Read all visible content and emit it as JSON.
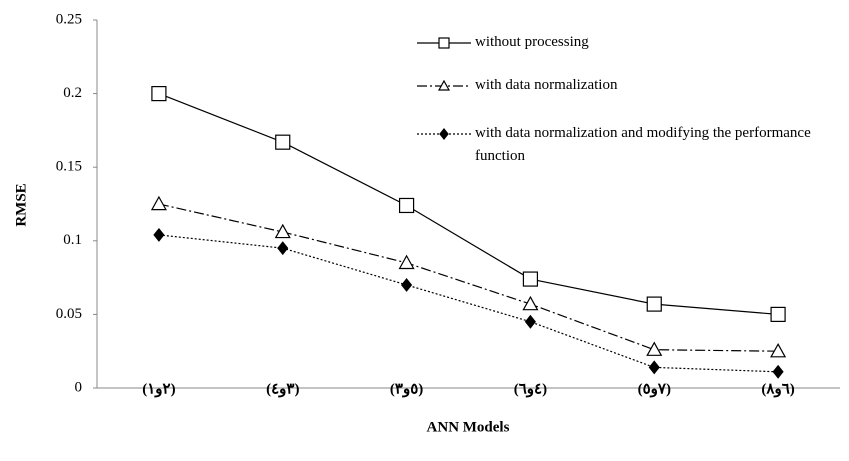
{
  "chart_data": {
    "type": "line",
    "x_label": "ANN Models",
    "y_label": "RMSE",
    "categories": [
      "(۲و۱)",
      "(۳و٤)",
      "(٥و۳)",
      "(٤و٦)",
      "(۷و٥)",
      "(٦و٨)"
    ],
    "ylim": [
      0,
      0.25
    ],
    "yticks": [
      0,
      0.05,
      0.1,
      0.15,
      0.2,
      0.25
    ],
    "grid": false,
    "series": [
      {
        "name": "without processing",
        "color": "#000000",
        "line_style": "solid",
        "marker": "square",
        "values": [
          0.2,
          0.167,
          0.124,
          0.074,
          0.057,
          0.05
        ]
      },
      {
        "name": "with data normalization",
        "color": "#000000",
        "line_style": "dashdot",
        "marker": "triangle",
        "values": [
          0.125,
          0.106,
          0.085,
          0.057,
          0.026,
          0.025
        ]
      },
      {
        "name": "with data normalization and modifying the performance function",
        "color": "#000000",
        "line_style": "dotted",
        "marker": "diamond",
        "values": [
          0.104,
          0.095,
          0.07,
          0.045,
          0.014,
          0.011
        ]
      }
    ]
  }
}
